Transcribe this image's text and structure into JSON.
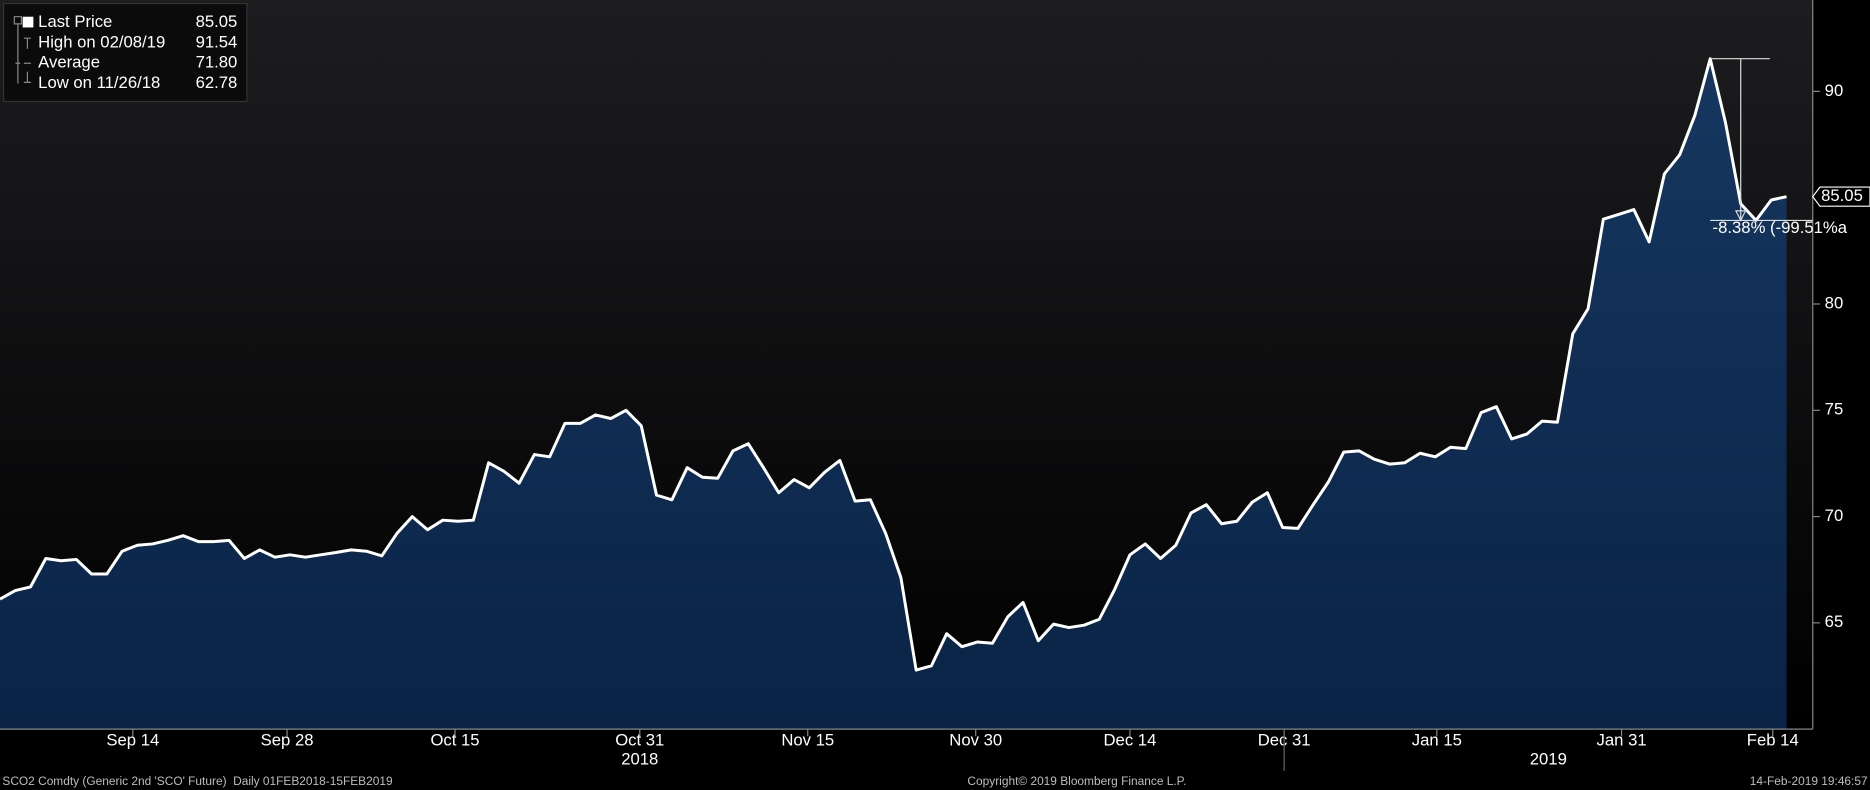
{
  "chart_data": {
    "type": "area",
    "series": [
      {
        "name": "Last Price",
        "color": "#ffffff",
        "fill": "#0e2a4f",
        "values": [
          66.12,
          66.52,
          66.69,
          68.03,
          67.92,
          67.98,
          67.3,
          67.3,
          68.37,
          68.65,
          68.71,
          68.88,
          69.1,
          68.82,
          68.82,
          68.88,
          68.03,
          68.43,
          68.09,
          68.2,
          68.09,
          68.2,
          68.31,
          68.43,
          68.37,
          68.15,
          69.21,
          70.0,
          69.38,
          69.83,
          69.78,
          69.83,
          72.53,
          72.13,
          71.57,
          72.92,
          72.81,
          74.38,
          74.38,
          74.78,
          74.61,
          75.0,
          74.27,
          71.01,
          70.79,
          72.3,
          71.85,
          71.8,
          73.09,
          73.43,
          72.3,
          71.12,
          71.74,
          71.35,
          72.08,
          72.64,
          70.73,
          70.79,
          69.21,
          67.13,
          62.78,
          62.98,
          64.49,
          63.88,
          64.1,
          64.04,
          65.28,
          65.96,
          64.16,
          64.94,
          64.78,
          64.89,
          65.17,
          66.57,
          68.2,
          68.71,
          68.03,
          68.65,
          70.17,
          70.56,
          69.66,
          69.78,
          70.67,
          71.12,
          69.49,
          69.44,
          70.56,
          71.63,
          73.03,
          73.09,
          72.7,
          72.47,
          72.53,
          72.98,
          72.81,
          73.26,
          73.2,
          74.89,
          75.17,
          73.65,
          73.88,
          74.49,
          74.44,
          78.6,
          79.78,
          83.99,
          84.21,
          84.44,
          82.92,
          86.12,
          87.02,
          88.88,
          91.54,
          88.54,
          84.72,
          83.93,
          84.89,
          85.05
        ]
      }
    ],
    "xlim": [
      0,
      117
    ],
    "xticks": [
      {
        "value": 8.7,
        "label": "Sep 14"
      },
      {
        "value": 18.8,
        "label": "Sep 28"
      },
      {
        "value": 29.8,
        "label": "Oct 15"
      },
      {
        "value": 41.9,
        "label": "Oct 31"
      },
      {
        "value": 52.9,
        "label": "Nov 15"
      },
      {
        "value": 63.9,
        "label": "Nov 30"
      },
      {
        "value": 74,
        "label": "Dec 14"
      },
      {
        "value": 84.1,
        "label": "Dec 31"
      },
      {
        "value": 94.1,
        "label": "Jan 15"
      },
      {
        "value": 106.2,
        "label": "Jan 31"
      },
      {
        "value": 116.1,
        "label": "Feb 14"
      }
    ],
    "year_labels": [
      {
        "value": 41.9,
        "label": "2018"
      },
      {
        "value": 101.4,
        "label": "2019"
      }
    ],
    "year_divider": 84.1,
    "ylim": [
      60,
      94.3
    ],
    "yticks": [
      65,
      70,
      75,
      80,
      90
    ],
    "legend": {
      "labels": [
        "Last Price",
        "High on 02/08/19",
        "Average",
        "Low on 11/26/18"
      ],
      "values": [
        85.05,
        91.54,
        71.8,
        62.78
      ],
      "value_labels": [
        "85.05",
        "91.54",
        "71.80",
        "62.78"
      ]
    },
    "annotation": "-8.38% (-99.51%a",
    "footer": {
      "left": "SCO2 Comdty (Generic 2nd 'SCO' Future)  Daily 01FEB2018-15FEB2019",
      "center": "Copyright© 2019 Bloomberg Finance L.P.",
      "right": "14-Feb-2019 19:46:57"
    }
  }
}
